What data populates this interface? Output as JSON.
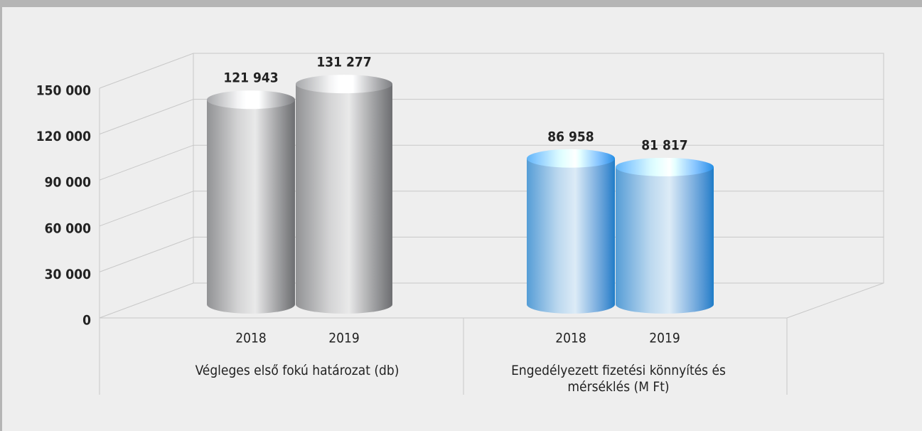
{
  "chart_data": {
    "type": "cylinder",
    "ylim": [
      0,
      150000
    ],
    "yticks": [
      0,
      {
        "value": 30000,
        "label": "30 000"
      },
      {
        "value": 60000,
        "label": "60 000"
      },
      {
        "value": 90000,
        "label": "90 000"
      },
      {
        "value": 120000,
        "label": "120 000"
      },
      {
        "value": 150000,
        "label": "150 000"
      }
    ],
    "grid": true,
    "groups": [
      {
        "label": "Végleges első fokú határozat (db)",
        "categories": [
          "2018",
          "2019"
        ],
        "values": [
          121943,
          131277
        ],
        "value_labels": [
          "121 943",
          "131 277"
        ],
        "color": "#6d6e71",
        "label_color": "#a0a0a0"
      },
      {
        "label": "Engedélyezett fizetési könnyítés és mérséklés (M Ft)",
        "categories": [
          "2018",
          "2019"
        ],
        "values": [
          86958,
          81817
        ],
        "value_labels": [
          "86 958",
          "81 817"
        ],
        "color": "#1b7cc8",
        "label_color": "#1b7cc8"
      }
    ]
  }
}
